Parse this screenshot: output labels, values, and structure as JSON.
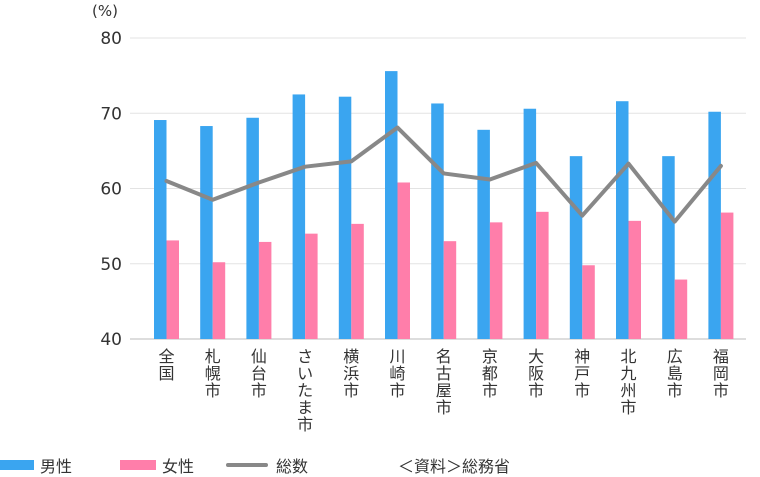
{
  "chart_data": {
    "type": "bar",
    "unit_label": "(%)",
    "categories": [
      "全国",
      "札幌市",
      "仙台市",
      "さいたま市",
      "横浜市",
      "川崎市",
      "名古屋市",
      "京都市",
      "大阪市",
      "神戸市",
      "北九州市",
      "広島市",
      "福岡市"
    ],
    "series": [
      {
        "name": "男性",
        "type": "bar",
        "color": "#3aa5f0",
        "values": [
          69.1,
          68.3,
          69.4,
          72.5,
          72.2,
          75.6,
          71.3,
          67.8,
          70.6,
          64.3,
          71.6,
          64.3,
          70.2
        ]
      },
      {
        "name": "女性",
        "type": "bar",
        "color": "#ff7eaa",
        "values": [
          53.1,
          50.2,
          52.9,
          54.0,
          55.3,
          60.8,
          53.0,
          55.5,
          56.9,
          49.8,
          55.7,
          47.9,
          56.8
        ]
      },
      {
        "name": "総数",
        "type": "line",
        "color": "#888888",
        "values": [
          61.0,
          58.5,
          60.8,
          62.9,
          63.6,
          68.1,
          62.0,
          61.2,
          63.4,
          56.4,
          63.3,
          55.6,
          63.0
        ]
      }
    ],
    "ylim": [
      40,
      80
    ],
    "yticks": [
      40,
      50,
      60,
      70,
      80
    ],
    "grid": true,
    "legend_position": "bottom",
    "source_note": "＜資料＞総務省"
  }
}
